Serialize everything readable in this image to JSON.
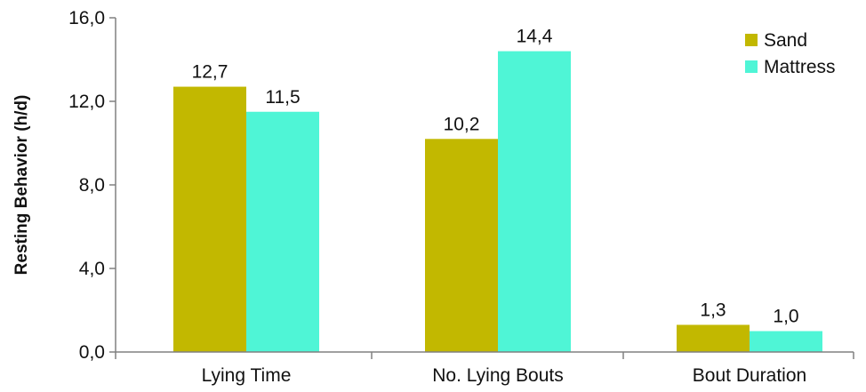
{
  "chart_data": {
    "type": "bar",
    "ylabel": "Resting Behavior (h/d)",
    "ylim": [
      0,
      16
    ],
    "yticks": [
      "0,0",
      "4,0",
      "8,0",
      "12,0",
      "16,0"
    ],
    "categories": [
      "Lying Time",
      "No. Lying Bouts",
      "Bout Duration"
    ],
    "series": [
      {
        "name": "Sand",
        "color": "#c2b800",
        "values": [
          12.7,
          10.2,
          1.3
        ],
        "labels": [
          "12,7",
          "10,2",
          "1,3"
        ]
      },
      {
        "name": "Mattress",
        "color": "#4ff5d6",
        "values": [
          11.5,
          14.4,
          1.0
        ],
        "labels": [
          "11,5",
          "14,4",
          "1,0"
        ]
      }
    ],
    "grid": false,
    "legend_position": "top-right"
  }
}
